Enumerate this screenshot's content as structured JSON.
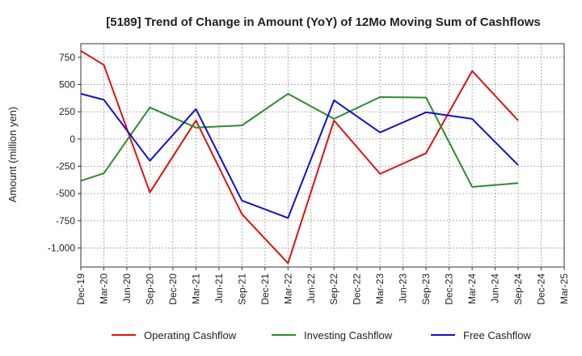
{
  "chart_data": {
    "type": "line",
    "title": "[5189]  Trend of Change in Amount (YoY) of 12Mo Moving Sum of Cashflows",
    "xlabel": "",
    "ylabel": "Amount (million yen)",
    "ylim": [
      -1175,
      875
    ],
    "yticks": [
      750,
      500,
      250,
      0,
      -250,
      -500,
      -750,
      -1000
    ],
    "ytick_labels": [
      "750",
      "500",
      "250",
      "0",
      "-250",
      "-500",
      "-750",
      "-1,000"
    ],
    "categories": [
      "Dec-19",
      "Mar-20",
      "Jun-20",
      "Sep-20",
      "Dec-20",
      "Mar-21",
      "Jun-21",
      "Sep-21",
      "Dec-21",
      "Mar-22",
      "Jun-22",
      "Sep-22",
      "Dec-22",
      "Mar-23",
      "Jun-23",
      "Sep-23",
      "Dec-23",
      "Mar-24",
      "Jun-24",
      "Sep-24",
      "Dec-24",
      "Mar-25"
    ],
    "grid": true,
    "legend_position": "bottom",
    "series": [
      {
        "name": "Operating Cashflow",
        "color": "#dd1111",
        "values": [
          810,
          680,
          null,
          -490,
          null,
          170,
          null,
          -690,
          null,
          -1140,
          null,
          170,
          null,
          -320,
          null,
          -130,
          null,
          625,
          null,
          170,
          null,
          null
        ]
      },
      {
        "name": "Investing Cashflow",
        "color": "#2e8b2e",
        "values": [
          -385,
          -315,
          null,
          290,
          null,
          105,
          null,
          125,
          null,
          415,
          null,
          185,
          null,
          385,
          null,
          380,
          null,
          -440,
          null,
          -405,
          null,
          null
        ]
      },
      {
        "name": "Free Cashflow",
        "color": "#1111cc",
        "values": [
          415,
          360,
          null,
          -200,
          null,
          275,
          null,
          -565,
          null,
          -725,
          null,
          355,
          null,
          60,
          null,
          245,
          null,
          185,
          null,
          -240,
          null,
          null
        ]
      }
    ]
  }
}
